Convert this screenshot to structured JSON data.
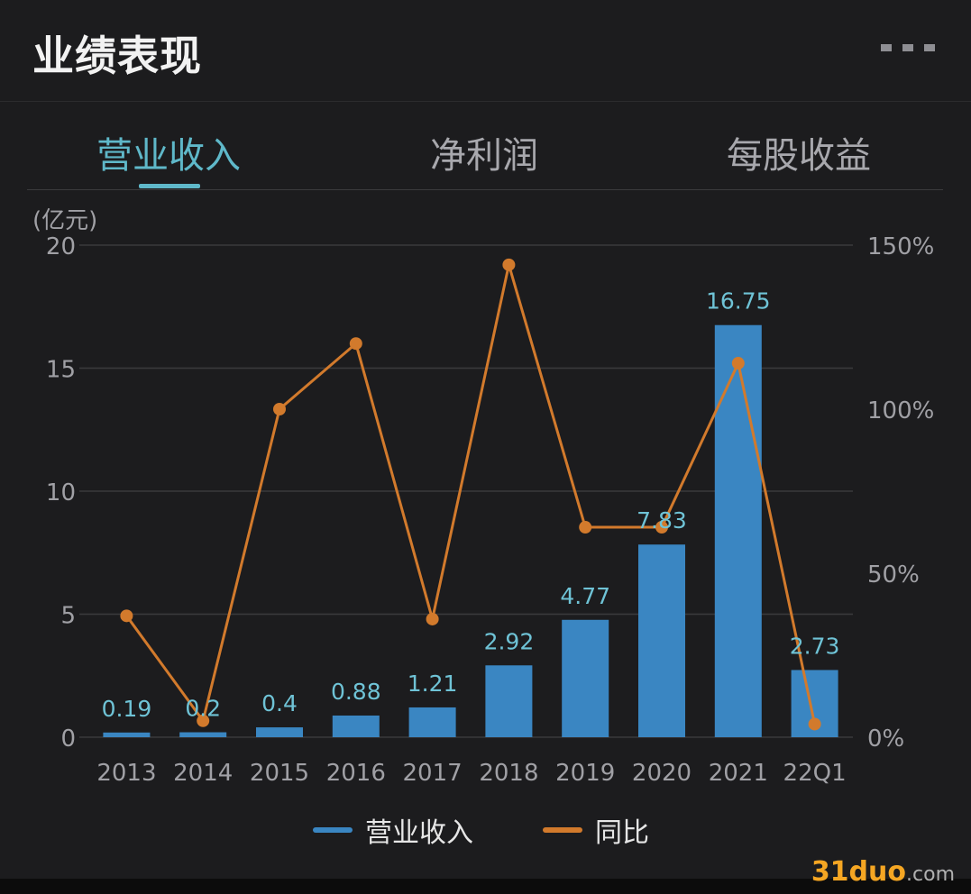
{
  "header": {
    "title": "业绩表现",
    "more_icon": "more-icon"
  },
  "tabs": [
    {
      "label": "营业收入",
      "active": true
    },
    {
      "label": "净利润",
      "active": false
    },
    {
      "label": "每股收益",
      "active": false
    }
  ],
  "chart_data": {
    "type": "bar",
    "y_unit": "(亿元)",
    "categories": [
      "2013",
      "2014",
      "2015",
      "2016",
      "2017",
      "2018",
      "2019",
      "2020",
      "2021",
      "22Q1"
    ],
    "series": [
      {
        "name": "营业收入",
        "type": "bar",
        "axis": "left",
        "color": "#3a86c2",
        "values": [
          0.19,
          0.2,
          0.4,
          0.88,
          1.21,
          2.92,
          4.77,
          7.83,
          16.75,
          2.73
        ],
        "labels": [
          "0.19",
          "0.2",
          "0.4",
          "0.88",
          "1.21",
          "2.92",
          "4.77",
          "7.83",
          "16.75",
          "2.73"
        ]
      },
      {
        "name": "同比",
        "type": "line",
        "axis": "right",
        "color": "#d27a2c",
        "values": [
          37,
          5,
          100,
          120,
          36,
          144,
          64,
          64,
          114,
          4
        ]
      }
    ],
    "y_left": {
      "min": 0,
      "max": 20,
      "ticks": [
        0,
        5,
        10,
        15,
        20
      ]
    },
    "y_right": {
      "min": 0,
      "max": 150,
      "ticks": [
        "0%",
        "50%",
        "100%",
        "150%"
      ]
    },
    "grid": true,
    "legend": "bottom-center",
    "label_color": "#6fc3d6"
  },
  "watermark": {
    "brand": "31duo",
    "suffix": ".com"
  }
}
